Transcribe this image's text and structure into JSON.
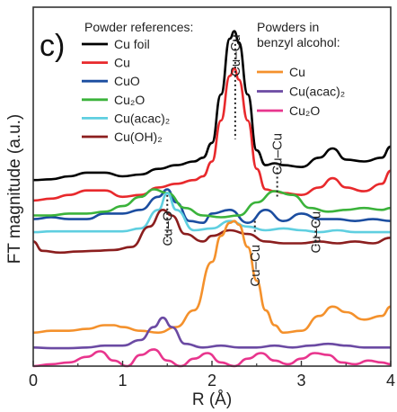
{
  "chart_data": {
    "type": "line",
    "panel_label": "c)",
    "xlabel": "R (Å)",
    "ylabel": "FT magnitude (a.u.)",
    "xlim": [
      0,
      4
    ],
    "ylim": [
      0,
      9.5
    ],
    "x_ticks": [
      "0",
      "1",
      "2",
      "3",
      "4"
    ],
    "legend_left_title": "Powder references:",
    "legend_right_title": [
      "Powders in",
      "benzyl alcohol:"
    ],
    "annotations": [
      {
        "text": "Cu–Cu",
        "x": 2.26,
        "y": 8.35
      },
      {
        "text": "Cu–Cu",
        "x": 2.73,
        "y": 5.7
      },
      {
        "text": "Cu–O",
        "x": 1.5,
        "y": 3.7
      },
      {
        "text": "Cu–Cu",
        "x": 2.48,
        "y": 2.7
      },
      {
        "text": "Cu–Cu",
        "x": 3.16,
        "y": 3.6
      }
    ],
    "series": [
      {
        "name": "Cu foil",
        "group": "left",
        "color": "#000000",
        "x": [
          0,
          0.2,
          0.4,
          0.6,
          0.8,
          1.0,
          1.2,
          1.4,
          1.6,
          1.8,
          1.9,
          2.0,
          2.1,
          2.2,
          2.25,
          2.3,
          2.4,
          2.5,
          2.6,
          2.7,
          2.8,
          3.0,
          3.2,
          3.35,
          3.5,
          3.7,
          3.9,
          4.0
        ],
        "y": [
          5.0,
          5.02,
          5.1,
          5.2,
          5.2,
          5.1,
          5.15,
          5.3,
          5.4,
          5.5,
          5.6,
          6.0,
          7.3,
          8.8,
          9.0,
          8.7,
          7.3,
          5.8,
          5.4,
          5.45,
          5.4,
          5.35,
          5.6,
          5.85,
          5.55,
          5.5,
          5.6,
          5.9
        ]
      },
      {
        "name": "Cu",
        "group": "left",
        "color": "#e8292c",
        "x": [
          0,
          0.2,
          0.4,
          0.6,
          0.8,
          1.0,
          1.2,
          1.4,
          1.6,
          1.8,
          1.9,
          2.0,
          2.1,
          2.2,
          2.25,
          2.3,
          2.4,
          2.5,
          2.6,
          2.7,
          2.8,
          3.0,
          3.2,
          3.35,
          3.5,
          3.7,
          3.9,
          4.0
        ],
        "y": [
          4.45,
          4.5,
          4.6,
          4.72,
          4.72,
          4.55,
          4.6,
          4.8,
          4.9,
          5.0,
          5.1,
          5.5,
          6.6,
          7.8,
          8.0,
          7.7,
          6.6,
          5.3,
          4.75,
          4.7,
          4.65,
          4.6,
          4.8,
          5.05,
          4.8,
          4.7,
          4.9,
          5.25
        ]
      },
      {
        "name": "CuO",
        "group": "left",
        "color": "#1b4da0",
        "x": [
          0,
          0.2,
          0.4,
          0.6,
          0.8,
          1.0,
          1.2,
          1.4,
          1.5,
          1.6,
          1.75,
          1.9,
          2.0,
          2.2,
          2.4,
          2.6,
          2.8,
          3.0,
          3.2,
          3.4,
          3.6,
          3.8,
          4.0
        ],
        "y": [
          3.95,
          4.0,
          3.95,
          3.95,
          4.1,
          4.1,
          4.2,
          4.55,
          4.75,
          4.4,
          3.9,
          3.85,
          4.1,
          4.2,
          3.85,
          4.2,
          3.9,
          4.1,
          3.95,
          3.95,
          3.9,
          3.95,
          3.9
        ]
      },
      {
        "name": "Cu₂O",
        "group": "left",
        "color": "#3bb33b",
        "x": [
          0,
          0.2,
          0.4,
          0.6,
          0.8,
          1.0,
          1.2,
          1.35,
          1.5,
          1.7,
          1.9,
          2.1,
          2.3,
          2.5,
          2.7,
          2.9,
          3.1,
          3.3,
          3.5,
          3.7,
          3.9,
          4.0
        ],
        "y": [
          4.05,
          4.05,
          4.1,
          4.1,
          4.15,
          4.3,
          4.55,
          4.75,
          4.65,
          4.25,
          4.05,
          4.0,
          4.05,
          4.4,
          4.7,
          4.6,
          4.25,
          4.15,
          4.2,
          4.25,
          4.2,
          4.25
        ]
      },
      {
        "name": "Cu(acac)₂",
        "group": "left",
        "color": "#5fcfe0",
        "x": [
          0,
          0.2,
          0.4,
          0.6,
          0.8,
          1.0,
          1.2,
          1.4,
          1.5,
          1.6,
          1.8,
          2.0,
          2.2,
          2.4,
          2.6,
          2.8,
          3.0,
          3.2,
          3.4,
          3.6,
          3.8,
          4.0
        ],
        "y": [
          3.6,
          3.62,
          3.62,
          3.62,
          3.62,
          3.62,
          3.7,
          4.2,
          4.65,
          4.2,
          3.65,
          3.7,
          3.9,
          3.75,
          3.65,
          3.7,
          3.65,
          3.6,
          3.65,
          3.6,
          3.6,
          3.6
        ]
      },
      {
        "name": "Cu(OH)₂",
        "group": "left",
        "color": "#8b1e1e",
        "x": [
          0,
          0.1,
          0.3,
          0.5,
          0.7,
          0.9,
          1.1,
          1.3,
          1.45,
          1.55,
          1.7,
          1.9,
          2.0,
          2.2,
          2.4,
          2.6,
          2.8,
          3.0,
          3.2,
          3.4,
          3.6,
          3.8,
          4.0
        ],
        "y": [
          3.35,
          3.1,
          3.05,
          3.08,
          3.1,
          3.12,
          3.2,
          3.75,
          4.2,
          4.05,
          3.55,
          3.35,
          3.5,
          3.65,
          3.55,
          3.35,
          3.3,
          3.3,
          3.35,
          3.3,
          3.35,
          3.3,
          3.45
        ]
      },
      {
        "name": "Cu",
        "group": "right",
        "color": "#f4912c",
        "x": [
          0,
          0.2,
          0.4,
          0.6,
          0.8,
          0.9,
          1.0,
          1.2,
          1.4,
          1.6,
          1.8,
          2.0,
          2.1,
          2.2,
          2.25,
          2.3,
          2.4,
          2.5,
          2.6,
          2.7,
          2.8,
          3.0,
          3.2,
          3.35,
          3.5,
          3.7,
          3.9,
          4.0
        ],
        "y": [
          0.9,
          0.95,
          0.95,
          1.0,
          1.1,
          1.1,
          1.05,
          0.95,
          0.9,
          1.05,
          1.5,
          2.8,
          3.5,
          3.85,
          3.9,
          3.8,
          3.2,
          2.3,
          1.5,
          1.1,
          0.9,
          0.95,
          1.35,
          1.6,
          1.45,
          1.25,
          1.35,
          1.6
        ]
      },
      {
        "name": "Cu(acac)₂",
        "group": "right",
        "color": "#6b4aa3",
        "x": [
          0,
          0.2,
          0.4,
          0.6,
          0.8,
          1.0,
          1.2,
          1.35,
          1.45,
          1.55,
          1.7,
          1.9,
          2.1,
          2.3,
          2.5,
          2.7,
          2.9,
          3.1,
          3.3,
          3.5,
          3.7,
          3.9,
          4.0
        ],
        "y": [
          0.5,
          0.48,
          0.48,
          0.5,
          0.55,
          0.55,
          0.7,
          1.05,
          1.3,
          1.05,
          0.6,
          0.5,
          0.55,
          0.5,
          0.5,
          0.55,
          0.5,
          0.55,
          0.6,
          0.55,
          0.5,
          0.5,
          0.5
        ]
      },
      {
        "name": "Cu₂O",
        "group": "right",
        "color": "#e8358d",
        "x": [
          0,
          0.2,
          0.4,
          0.6,
          0.75,
          0.9,
          1.05,
          1.2,
          1.35,
          1.5,
          1.65,
          1.8,
          1.95,
          2.1,
          2.25,
          2.4,
          2.55,
          2.7,
          2.85,
          3.0,
          3.15,
          3.3,
          3.45,
          3.6,
          3.75,
          3.9,
          4.0
        ],
        "y": [
          0.0,
          0.05,
          0.1,
          0.25,
          0.4,
          0.15,
          0.0,
          0.3,
          0.45,
          0.15,
          0.0,
          0.2,
          0.35,
          0.1,
          0.0,
          0.2,
          0.35,
          0.15,
          0.05,
          0.2,
          0.35,
          0.3,
          0.1,
          0.05,
          0.15,
          0.1,
          0.05
        ]
      }
    ]
  }
}
